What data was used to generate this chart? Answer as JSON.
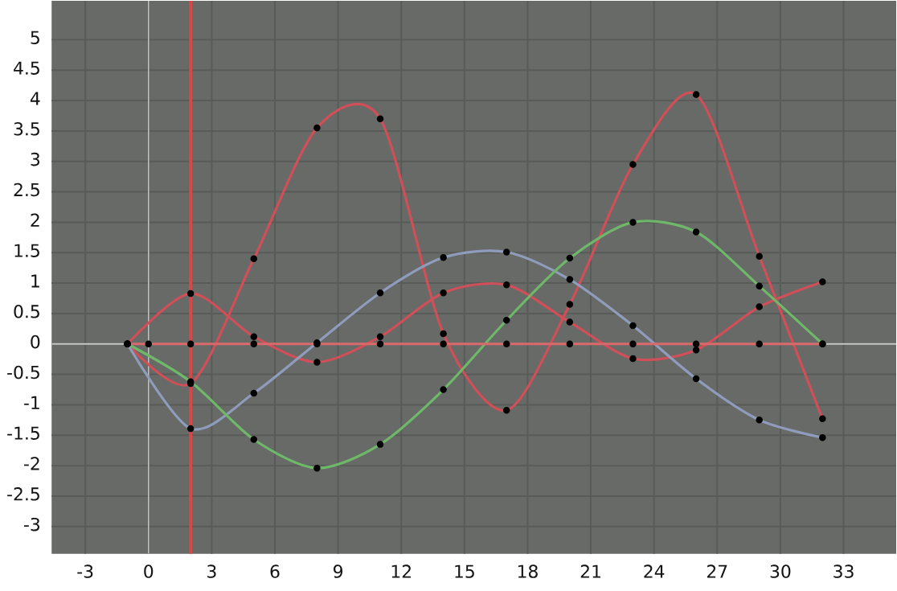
{
  "chart_data": {
    "type": "line",
    "series": [
      {
        "color": "#d04f58",
        "x": [
          -1,
          2,
          5,
          8,
          11,
          14,
          17,
          20,
          23,
          26,
          29,
          32
        ],
        "values": [
          0,
          -0.65,
          1.4,
          3.55,
          3.7,
          0.17,
          -1.09,
          0.65,
          2.95,
          4.1,
          1.44,
          -1.23
        ]
      },
      {
        "color": "#d04f58",
        "x": [
          -1,
          2,
          5,
          8,
          11,
          14,
          17,
          20,
          23,
          26,
          29,
          32
        ],
        "values": [
          0,
          0.83,
          0.12,
          -0.3,
          0.12,
          0.84,
          0.97,
          0.36,
          -0.24,
          -0.1,
          0.61,
          1.02
        ]
      },
      {
        "color": "#8f9cbc",
        "x": [
          -1,
          2,
          5,
          8,
          11,
          14,
          17,
          20,
          23,
          26,
          29,
          32
        ],
        "values": [
          0,
          -1.39,
          -0.81,
          0.02,
          0.84,
          1.42,
          1.51,
          1.06,
          0.3,
          -0.57,
          -1.25,
          -1.54
        ]
      },
      {
        "color": "#6fb86a",
        "x": [
          -1,
          2,
          5,
          8,
          11,
          14,
          17,
          20,
          23,
          26,
          29,
          32
        ],
        "values": [
          0,
          -0.62,
          -1.57,
          -2.04,
          -1.65,
          -0.75,
          0.39,
          1.41,
          2.0,
          1.84,
          0.95,
          0
        ]
      },
      {
        "color": "#d9686a",
        "x": [
          -1,
          0,
          2,
          5,
          8,
          11,
          14,
          17,
          20,
          23,
          26,
          29,
          32
        ],
        "values": [
          0,
          0,
          0,
          0,
          0,
          0,
          0,
          0,
          0,
          0,
          0,
          0,
          0
        ]
      }
    ],
    "xlim": [
      -4.6,
      35.5
    ],
    "ylim": [
      -3.45,
      5.64
    ],
    "xticks": [
      -3,
      0,
      3,
      6,
      9,
      12,
      15,
      18,
      21,
      24,
      27,
      30,
      33
    ],
    "yticks": [
      -3,
      -2.5,
      -2,
      -1.5,
      -1,
      -0.5,
      0,
      0.5,
      1,
      1.5,
      2,
      2.5,
      3,
      3.5,
      4,
      4.5,
      5
    ],
    "ref_lines": [
      {
        "axis": "y",
        "value": 0,
        "color": "#c8c8c8"
      },
      {
        "axis": "x",
        "value": 0,
        "color": "#c8c8c8"
      },
      {
        "axis": "x",
        "value": 2,
        "color": "#d84848"
      }
    ],
    "grid": true,
    "marker": "circle",
    "line_style": "solid"
  }
}
